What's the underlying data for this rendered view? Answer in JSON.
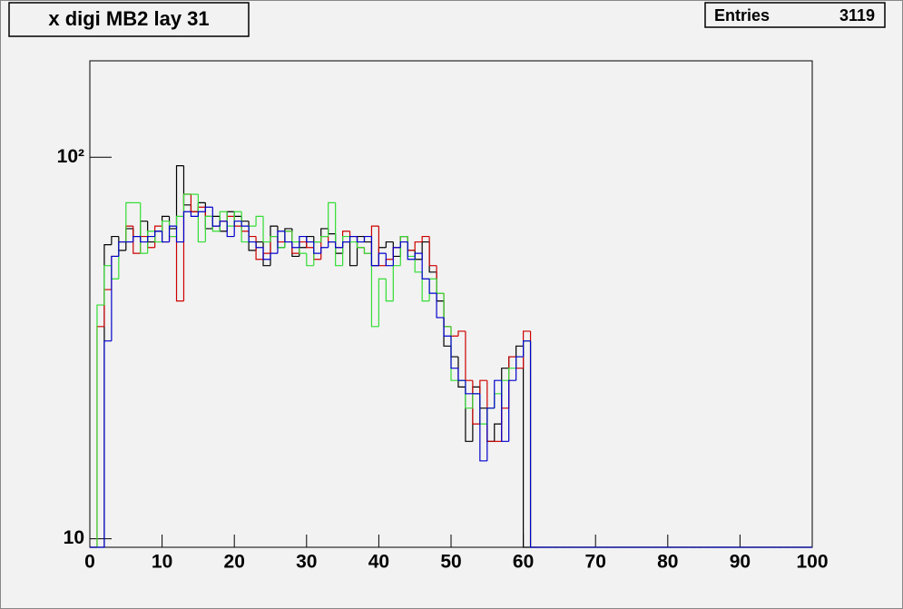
{
  "chart_data": {
    "type": "histogram",
    "title": "x digi MB2 lay 31",
    "stats": {
      "label": "Entries",
      "value": 3119
    },
    "bins": [
      0,
      1,
      2,
      3,
      4,
      5,
      6,
      7,
      8,
      9,
      10,
      11,
      12,
      13,
      14,
      15,
      16,
      17,
      18,
      19,
      20,
      21,
      22,
      23,
      24,
      25,
      26,
      27,
      28,
      29,
      30,
      31,
      32,
      33,
      34,
      35,
      36,
      37,
      38,
      39,
      40,
      41,
      42,
      43,
      44,
      45,
      46,
      47,
      48,
      49,
      50,
      51,
      52,
      53,
      54,
      55,
      56,
      57,
      58,
      59,
      60,
      61,
      62,
      63,
      64,
      65,
      66,
      67,
      68,
      69,
      70,
      71,
      72,
      73,
      74,
      75,
      76,
      77,
      78,
      79,
      80,
      81,
      82,
      83,
      84,
      85,
      86,
      87,
      88,
      89,
      90,
      91,
      92,
      93,
      94,
      95,
      96,
      97,
      98,
      99,
      100
    ],
    "log_y": true,
    "xlim": [
      0,
      100
    ],
    "xticks": [
      0,
      10,
      20,
      30,
      40,
      50,
      60,
      70,
      80,
      90,
      100
    ],
    "ylim": [
      9.5,
      179
    ],
    "yticks": [
      10,
      {
        "value": 100,
        "label": "10²"
      }
    ],
    "series": [
      {
        "color": "#000000",
        "values": [
          0,
          0,
          59,
          62,
          57,
          65,
          62,
          68,
          60,
          64,
          70,
          65,
          95,
          75,
          72,
          76,
          65,
          70,
          64,
          72,
          70,
          68,
          57,
          60,
          52,
          66,
          58,
          65,
          55,
          58,
          62,
          60,
          65,
          63,
          56,
          60,
          52,
          62,
          60,
          52,
          58,
          60,
          55,
          62,
          57,
          54,
          60,
          50,
          42,
          32,
          30,
          25,
          18,
          25,
          22,
          18,
          20,
          28,
          30,
          32,
          0,
          0,
          0,
          0,
          0,
          0,
          0,
          0,
          0,
          0,
          0,
          0,
          0,
          0,
          0,
          0,
          0,
          0,
          0,
          0,
          0,
          0,
          0,
          0,
          0,
          0,
          0,
          0,
          0,
          0,
          0,
          0,
          0,
          0,
          0,
          0,
          0,
          0,
          0,
          0
        ]
      },
      {
        "color": "#cc0000",
        "values": [
          0,
          36,
          45,
          55,
          60,
          66,
          56,
          62,
          58,
          66,
          60,
          62,
          42,
          80,
          72,
          74,
          70,
          66,
          68,
          70,
          66,
          64,
          62,
          54,
          56,
          62,
          60,
          64,
          56,
          60,
          58,
          54,
          62,
          60,
          58,
          64,
          62,
          58,
          56,
          66,
          52,
          54,
          58,
          62,
          57,
          60,
          62,
          52,
          44,
          36,
          34,
          35,
          26,
          20,
          26,
          18,
          18,
          22,
          30,
          28,
          35,
          0,
          0,
          0,
          0,
          0,
          0,
          0,
          0,
          0,
          0,
          0,
          0,
          0,
          0,
          0,
          0,
          0,
          0,
          0,
          0,
          0,
          0,
          0,
          0,
          0,
          0,
          0,
          0,
          0,
          0,
          0,
          0,
          0,
          0,
          0,
          0,
          0,
          0,
          0
        ]
      },
      {
        "color": "#33dd33",
        "values": [
          0,
          41,
          52,
          48,
          60,
          76,
          76,
          56,
          64,
          60,
          68,
          62,
          70,
          80,
          80,
          60,
          70,
          64,
          72,
          66,
          72,
          60,
          66,
          70,
          60,
          62,
          58,
          64,
          60,
          56,
          52,
          60,
          62,
          76,
          52,
          62,
          60,
          58,
          56,
          36,
          48,
          42,
          52,
          62,
          55,
          50,
          42,
          48,
          44,
          36,
          26,
          26,
          22,
          24,
          20,
          22,
          24,
          26,
          28,
          30,
          33,
          0,
          0,
          0,
          0,
          0,
          0,
          0,
          0,
          0,
          0,
          0,
          0,
          0,
          0,
          0,
          0,
          0,
          0,
          0,
          0,
          0,
          0,
          0,
          0,
          0,
          0,
          0,
          0,
          0,
          0,
          0,
          0,
          0,
          0,
          0,
          0,
          0,
          0,
          0
        ]
      },
      {
        "color": "#0000cc",
        "values": [
          0,
          0,
          33,
          55,
          60,
          60,
          62,
          60,
          62,
          64,
          60,
          66,
          60,
          72,
          70,
          72,
          74,
          66,
          68,
          62,
          68,
          66,
          60,
          58,
          54,
          56,
          64,
          60,
          58,
          62,
          60,
          56,
          58,
          60,
          58,
          60,
          62,
          60,
          62,
          52,
          56,
          52,
          58,
          60,
          54,
          56,
          48,
          44,
          38,
          34,
          28,
          26,
          24,
          24,
          16,
          22,
          26,
          18,
          26,
          30,
          33,
          0,
          0,
          0,
          0,
          0,
          0,
          0,
          0,
          0,
          0,
          0,
          0,
          0,
          0,
          0,
          0,
          0,
          0,
          0,
          0,
          0,
          0,
          0,
          0,
          0,
          0,
          0,
          0,
          0,
          0,
          0,
          0,
          0,
          0,
          0,
          0,
          0,
          0,
          0
        ]
      }
    ]
  }
}
